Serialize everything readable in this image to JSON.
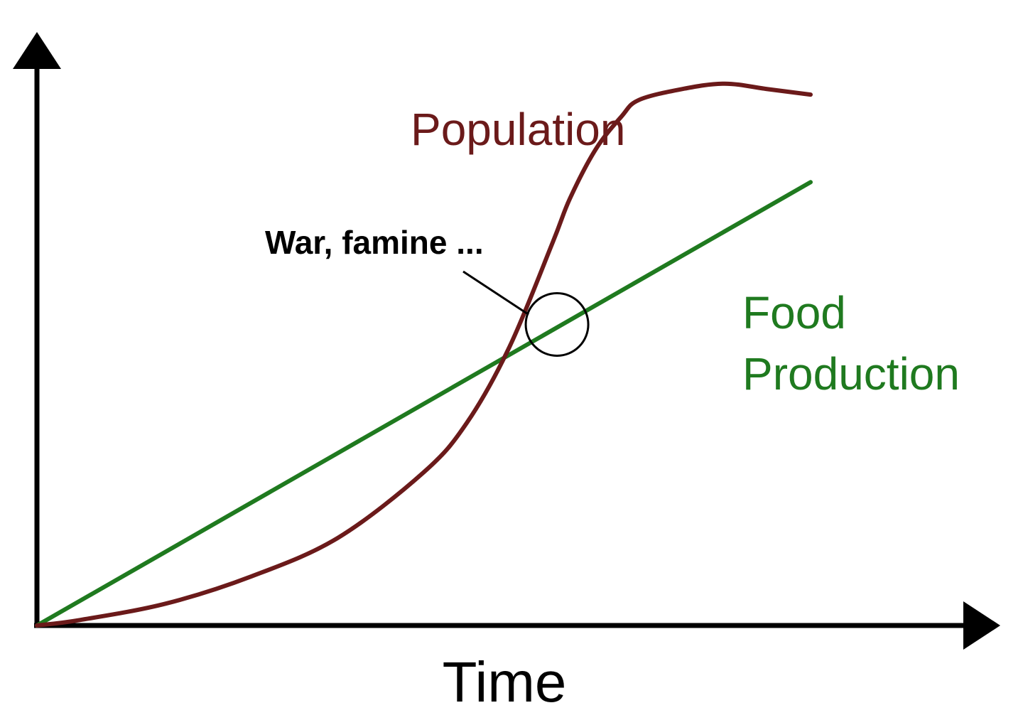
{
  "chart_data": {
    "type": "line",
    "title": "",
    "xlabel": "Time",
    "ylabel": "",
    "xlim": [
      0,
      100
    ],
    "ylim": [
      0,
      100
    ],
    "grid": false,
    "legend": "none",
    "series": [
      {
        "name": "Population",
        "color": "#6b1a1a",
        "x": [
          0,
          5,
          15,
          25,
          35,
          45,
          50,
          55,
          60,
          62,
          65,
          68,
          70,
          75,
          80,
          85,
          90
        ],
        "y": [
          0,
          1,
          4,
          9,
          16,
          28,
          37,
          51,
          70,
          78,
          87,
          93,
          96,
          98,
          99,
          98,
          97
        ]
      },
      {
        "name": "Food Production",
        "color": "#1f7a1f",
        "x": [
          0,
          90
        ],
        "y": [
          0,
          81
        ]
      }
    ],
    "annotations": [
      {
        "text": "War, famine ...",
        "x": 60.5,
        "y": 55
      }
    ]
  }
}
